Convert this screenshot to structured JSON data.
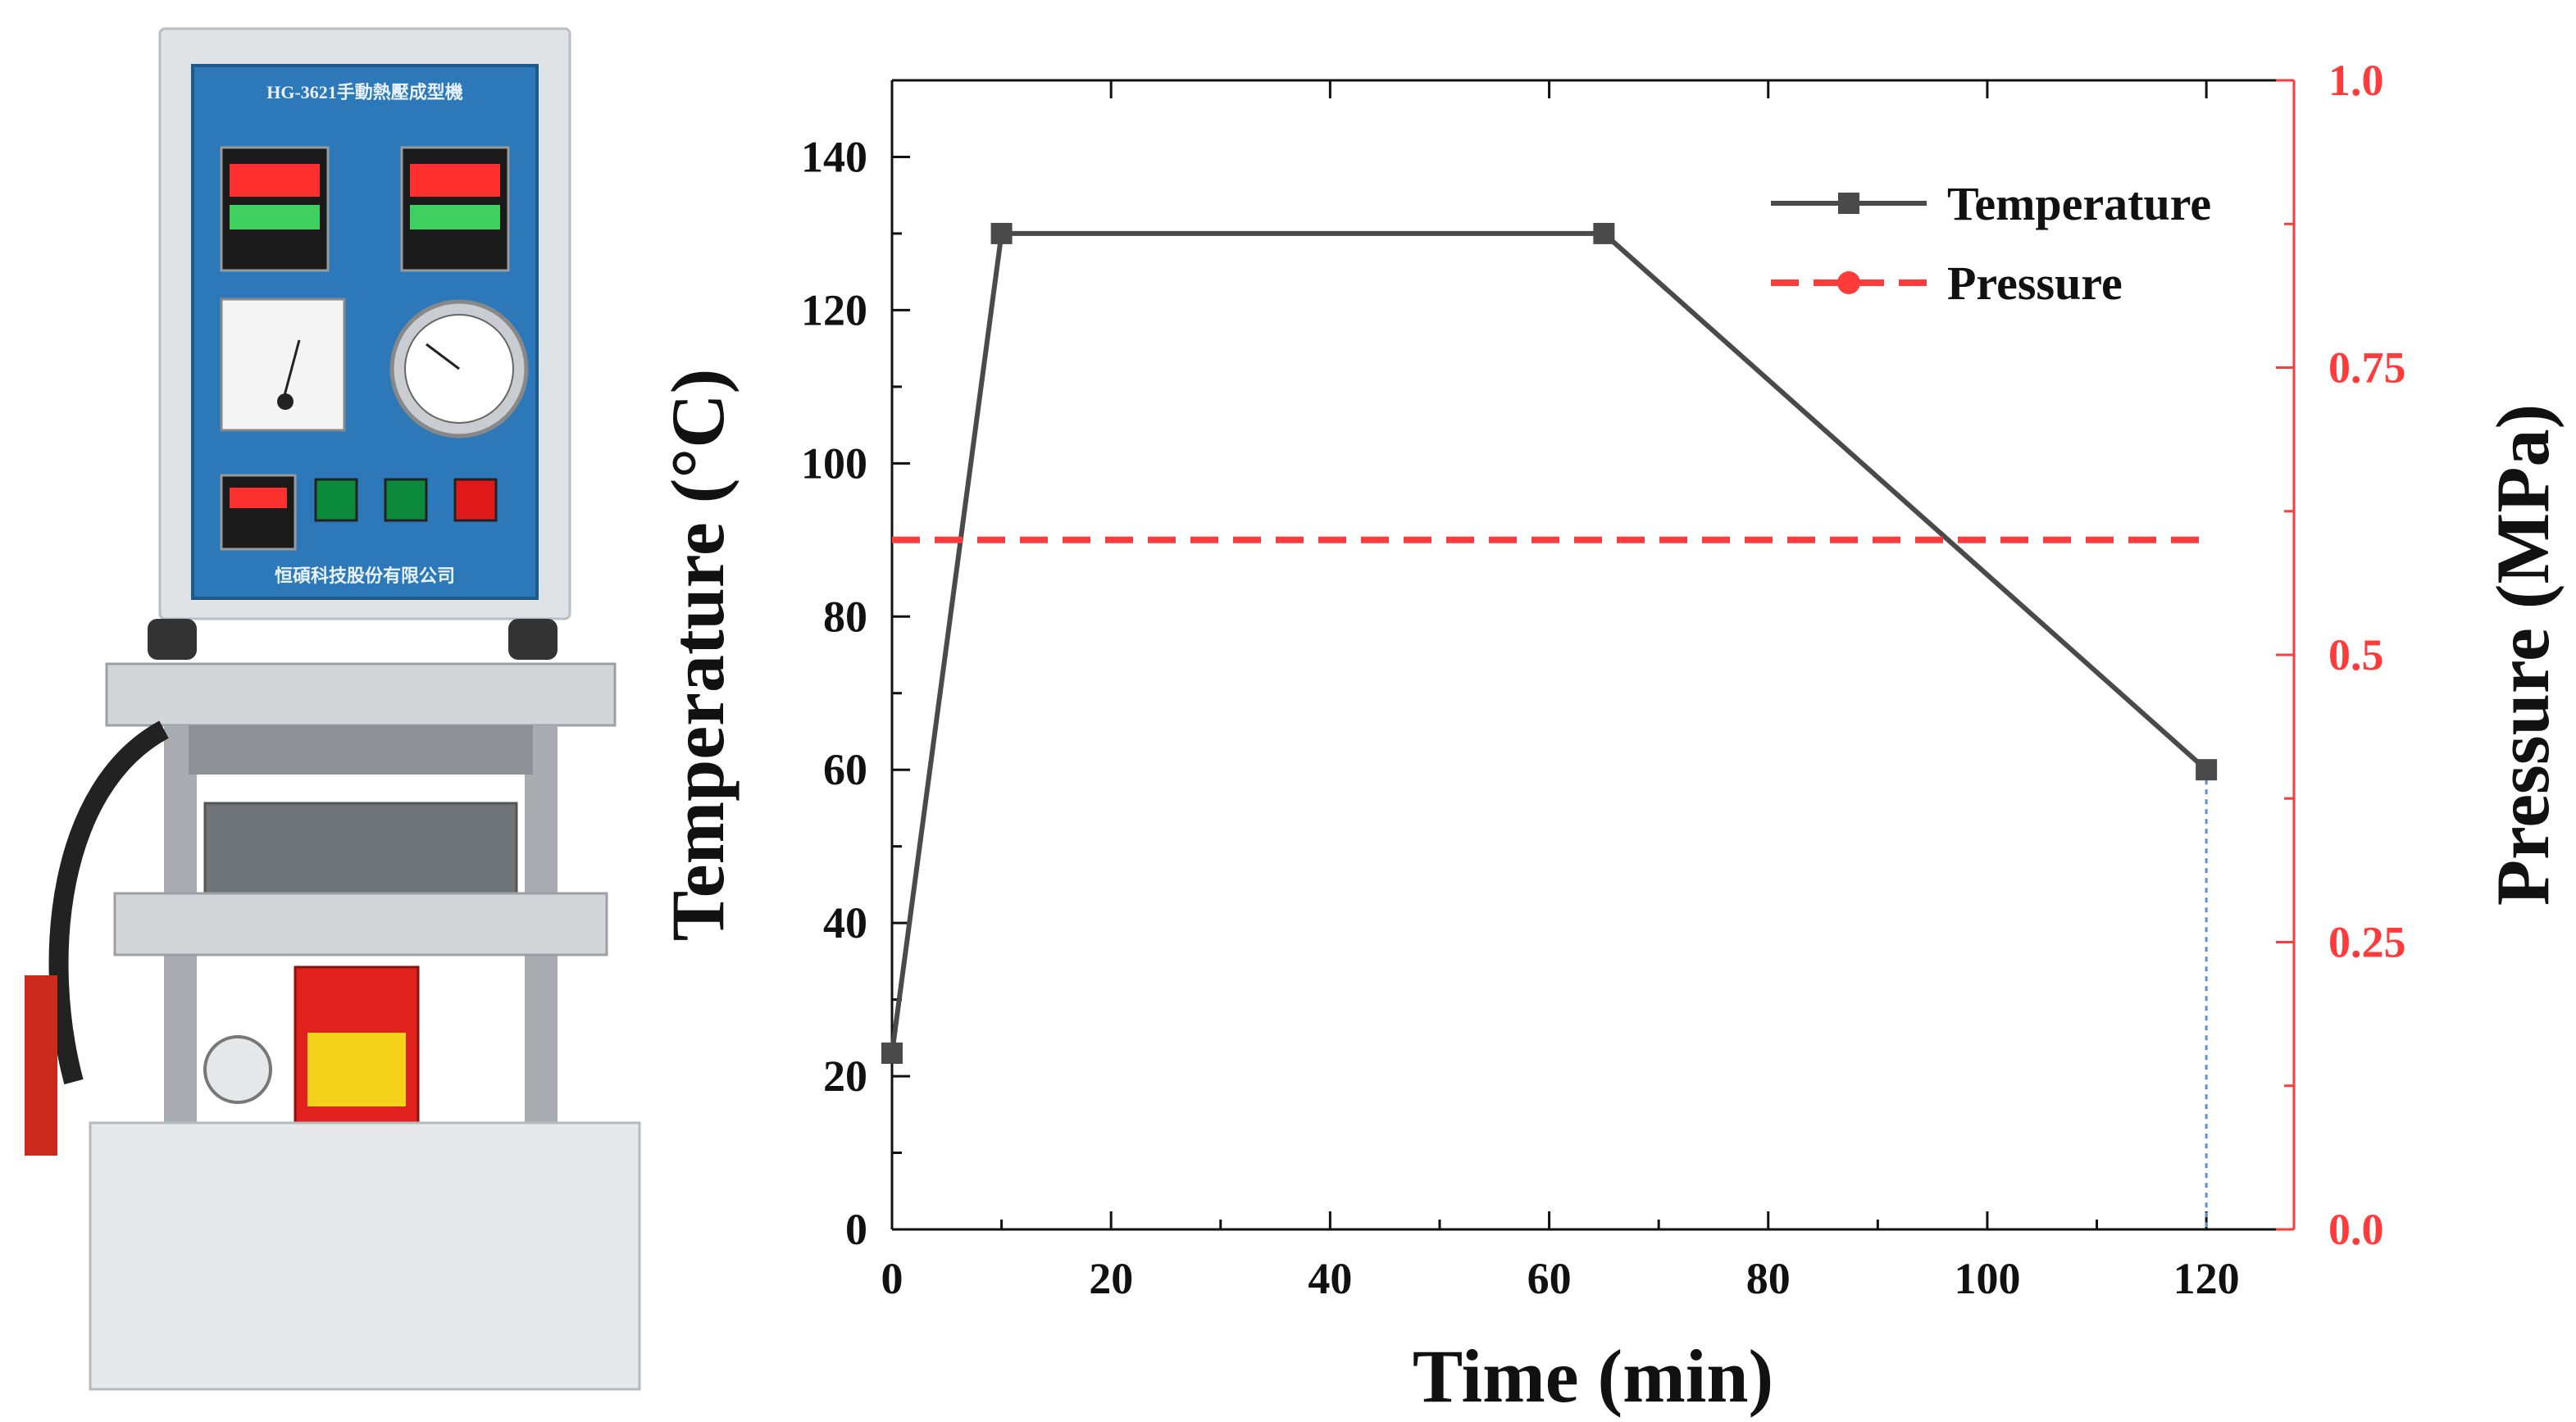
{
  "photo": {
    "description_icon": "hot-press-machine-photo",
    "panel_label": "HG-3621手動熱壓成型機",
    "company_label": "恒碩科技股份有限公司"
  },
  "chart_data": {
    "type": "line",
    "xlabel": "Time (min)",
    "ylabel": "Temperature (°C)",
    "y2label": "Pressure (MPa)",
    "xlim": [
      0,
      128
    ],
    "ylim": [
      0,
      150
    ],
    "y2lim": [
      0,
      1.0
    ],
    "x_ticks": [
      0,
      20,
      40,
      60,
      80,
      100,
      120
    ],
    "x_tick_labels": [
      "0",
      "20",
      "40",
      "60",
      "80",
      "100",
      "120"
    ],
    "y_ticks": [
      0,
      20,
      40,
      60,
      80,
      100,
      120,
      140
    ],
    "y_tick_labels": [
      "0",
      "20",
      "40",
      "60",
      "80",
      "100",
      "120",
      "140"
    ],
    "y2_ticks": [
      0,
      0.25,
      0.5,
      0.75,
      1.0
    ],
    "y2_tick_labels": [
      "0.0",
      "0.25",
      "0.5",
      "0.75",
      "1.0"
    ],
    "series": [
      {
        "name": "Temperature",
        "axis": "left",
        "color": "#4a4a4a",
        "style": "solid",
        "marker": "square",
        "x": [
          0,
          10,
          65,
          120
        ],
        "y": [
          23,
          130,
          130,
          60
        ]
      },
      {
        "name": "Pressure",
        "axis": "right",
        "color": "#ff3b3b",
        "style": "dashed",
        "marker": "circle",
        "x": [
          0,
          120
        ],
        "y": [
          0.6,
          0.6
        ]
      }
    ],
    "annotation_line": {
      "x": 120,
      "color": "#5b8fd6",
      "style": "dotted"
    },
    "legend_position": "top-right",
    "grid": false,
    "colors": {
      "left_axis": "#111111",
      "right_axis": "#ff3b3b"
    }
  }
}
